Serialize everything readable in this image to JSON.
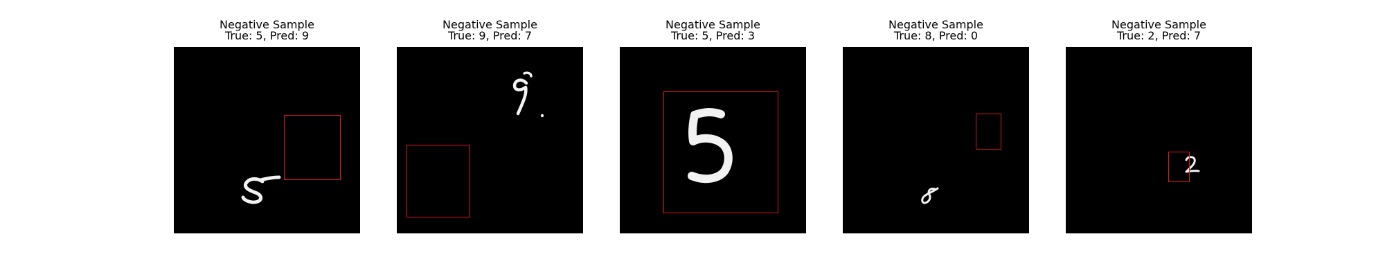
{
  "figure": {
    "panels": [
      {
        "title": "Negative Sample",
        "subtitle": "True: 5, Pred: 9",
        "true_label": 5,
        "pred_label": 9
      },
      {
        "title": "Negative Sample",
        "subtitle": "True: 9, Pred: 7",
        "true_label": 9,
        "pred_label": 7
      },
      {
        "title": "Negative Sample",
        "subtitle": "True: 5, Pred: 3",
        "true_label": 5,
        "pred_label": 3
      },
      {
        "title": "Negative Sample",
        "subtitle": "True: 8, Pred: 0",
        "true_label": 8,
        "pred_label": 0
      },
      {
        "title": "Negative Sample",
        "subtitle": "True: 2, Pred: 7",
        "true_label": 2,
        "pred_label": 7
      }
    ],
    "colors": {
      "image_background": "#000000",
      "digit_stroke": "#f2f2f2",
      "bbox": "#e3191c",
      "title_text": "#000000"
    }
  }
}
